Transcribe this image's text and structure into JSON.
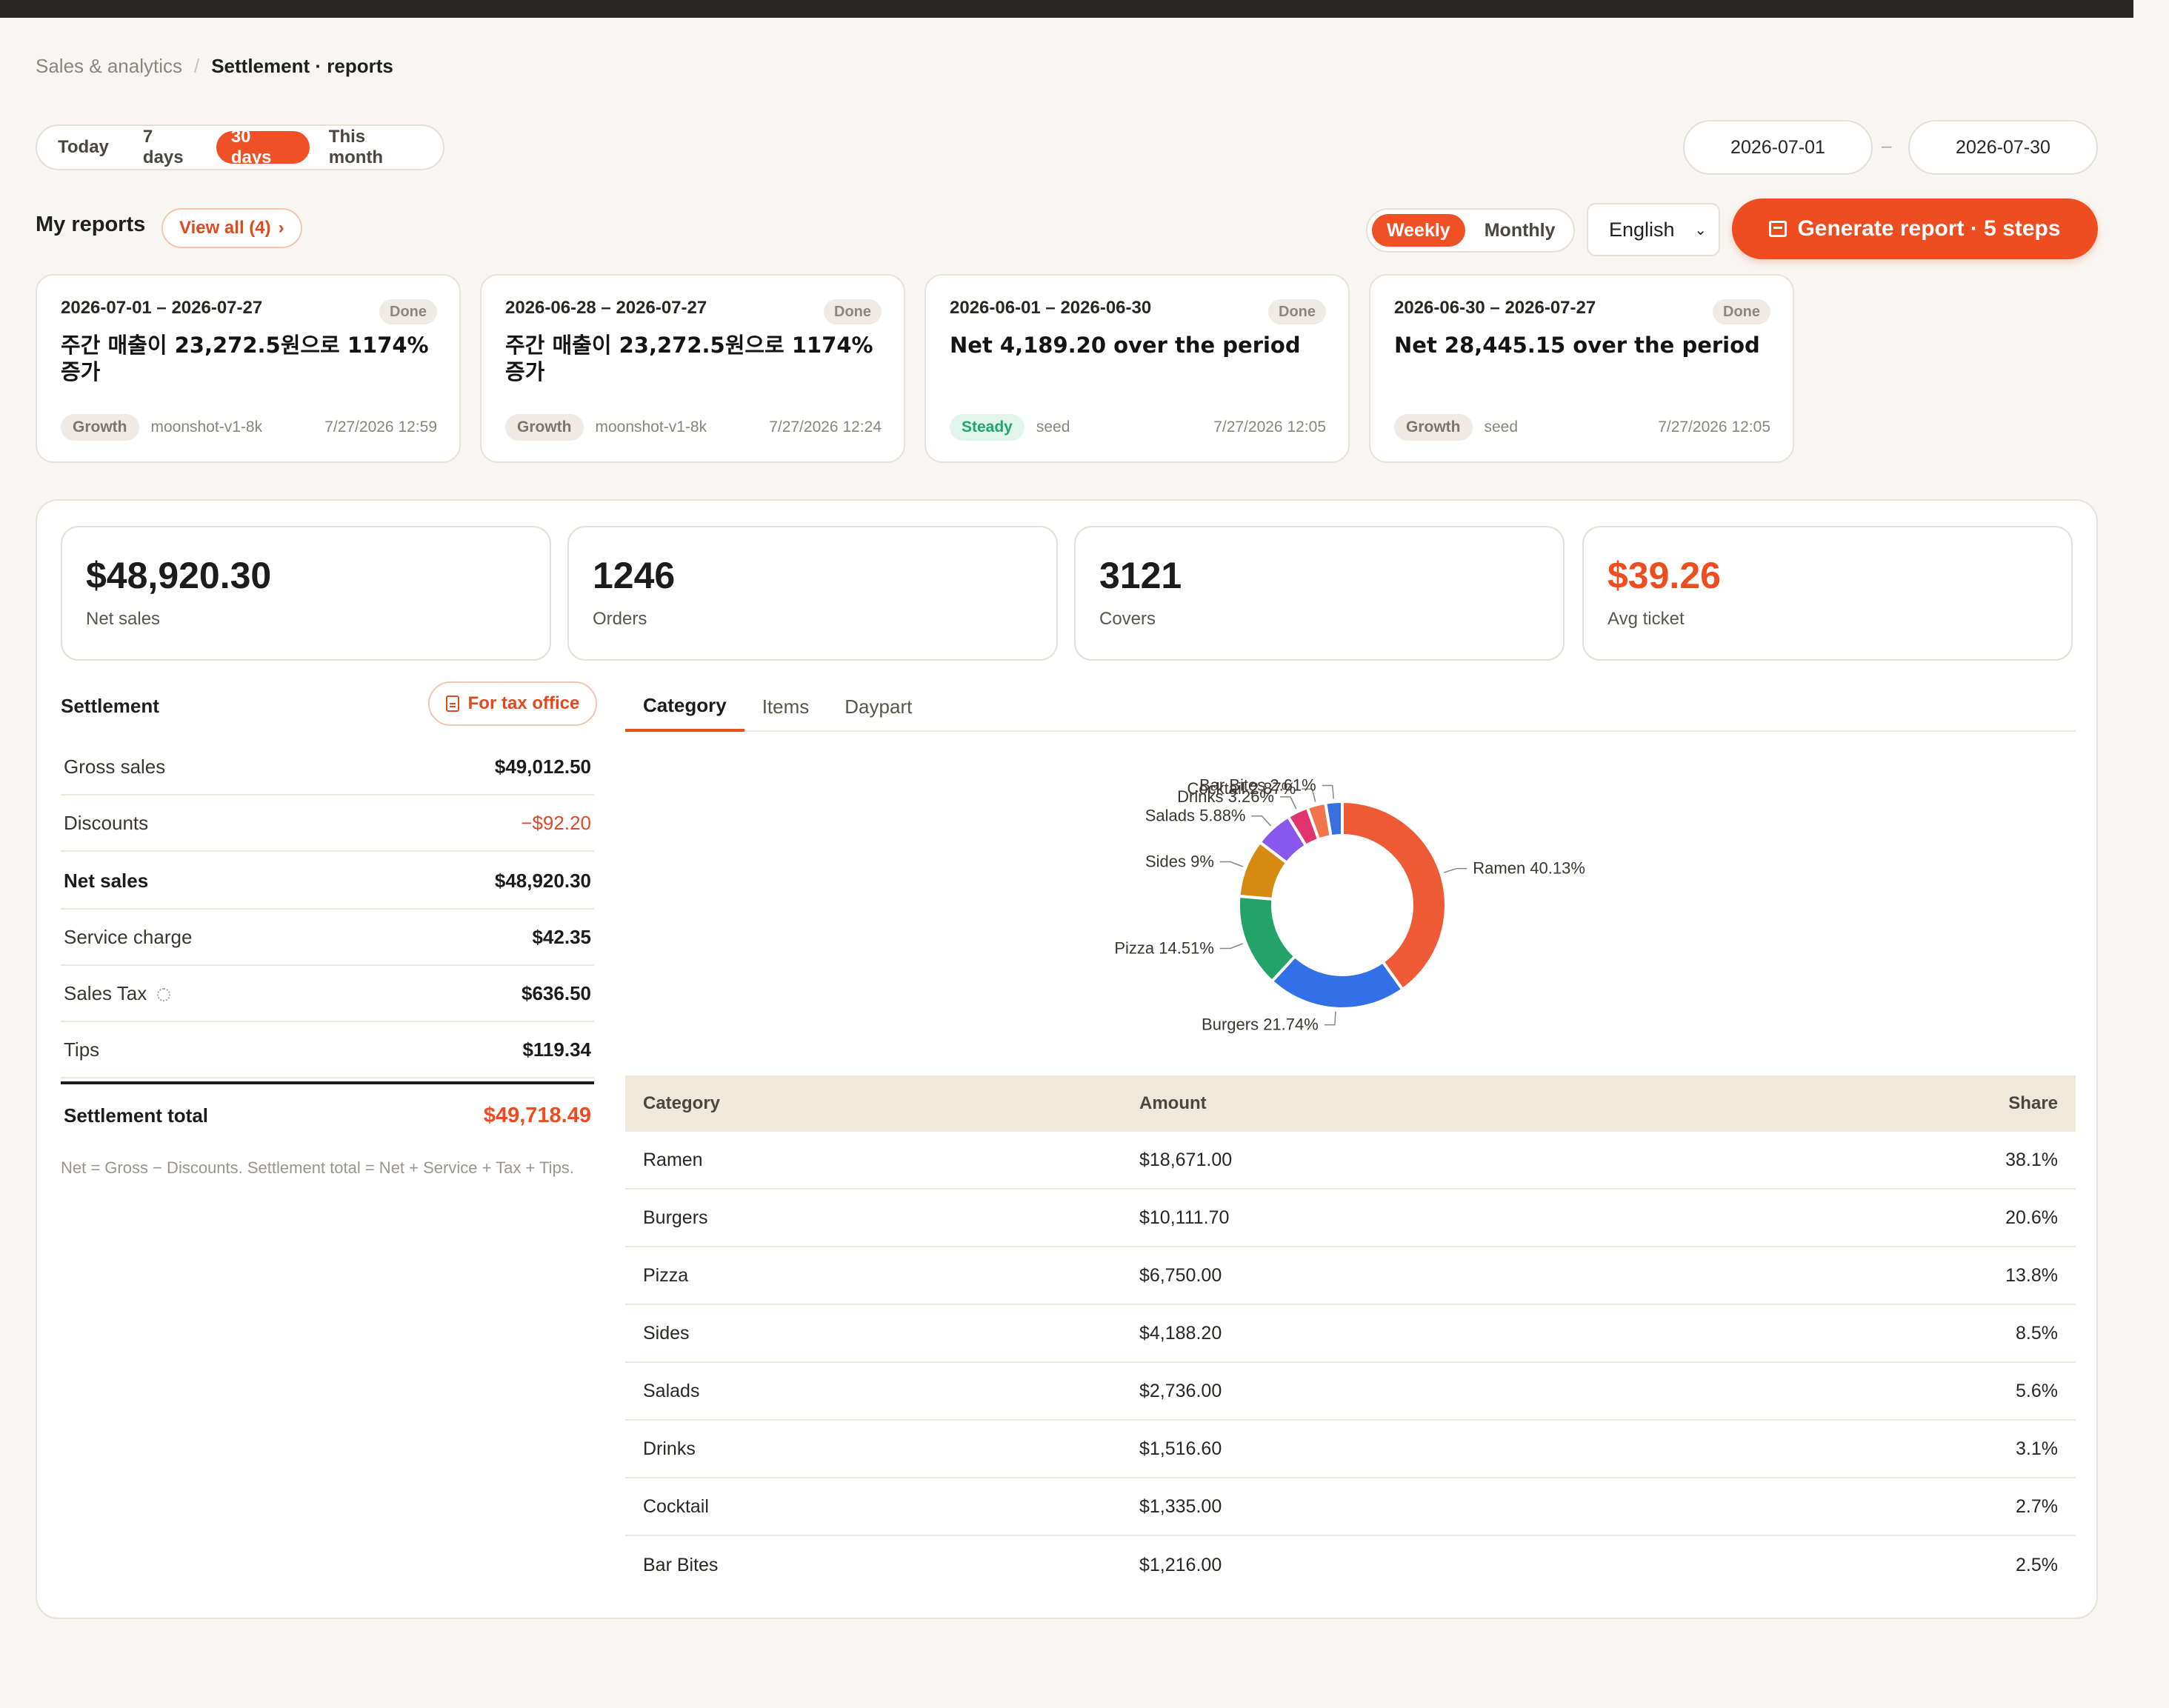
{
  "breadcrumb": {
    "parent": "Sales & analytics",
    "separator": "/",
    "current": "Settlement · reports"
  },
  "range_options": [
    "Today",
    "7 days",
    "30 days",
    "This month"
  ],
  "range_selected": "30 days",
  "date_from": "2026-07-01",
  "date_to": "2026-07-30",
  "date_separator": "–",
  "my_reports": {
    "title": "My reports",
    "view_all": "View all (4)"
  },
  "period_toggle": {
    "options": [
      "Weekly",
      "Monthly"
    ],
    "selected": "Weekly"
  },
  "language": {
    "selected": "English"
  },
  "generate_button": "Generate report · 5 steps",
  "report_cards": [
    {
      "range": "2026-07-01 – 2026-07-27",
      "status": "Done",
      "title": "주간 매출이 23,272.5원으로 1174% 증가",
      "tag": "Growth",
      "model": "moonshot-v1-8k",
      "time": "7/27/2026 12:59"
    },
    {
      "range": "2026-06-28 – 2026-07-27",
      "status": "Done",
      "title": "주간 매출이 23,272.5원으로 1174% 증가",
      "tag": "Growth",
      "model": "moonshot-v1-8k",
      "time": "7/27/2026 12:24"
    },
    {
      "range": "2026-06-01 – 2026-06-30",
      "status": "Done",
      "title": "Net 4,189.20 over the period",
      "tag": "Steady",
      "model": "seed",
      "time": "7/27/2026 12:05"
    },
    {
      "range": "2026-06-30 – 2026-07-27",
      "status": "Done",
      "title": "Net 28,445.15 over the period",
      "tag": "Growth",
      "model": "seed",
      "time": "7/27/2026 12:05"
    }
  ],
  "kpis": [
    {
      "value": "$48,920.30",
      "label": "Net sales"
    },
    {
      "value": "1246",
      "label": "Orders"
    },
    {
      "value": "3121",
      "label": "Covers"
    },
    {
      "value": "$39.26",
      "label": "Avg ticket"
    }
  ],
  "settlement": {
    "title": "Settlement",
    "tax_button": "For tax office",
    "rows": [
      {
        "label": "Gross sales",
        "value": "$49,012.50"
      },
      {
        "label": "Discounts",
        "value": "−$92.20"
      },
      {
        "label": "Net sales",
        "value": "$48,920.30"
      },
      {
        "label": "Service charge",
        "value": "$42.35"
      },
      {
        "label": "Sales Tax",
        "value": "$636.50"
      },
      {
        "label": "Tips",
        "value": "$119.34"
      }
    ],
    "total_label": "Settlement total",
    "total_value": "$49,718.49",
    "note": "Net = Gross − Discounts. Settlement total = Net + Service + Tax + Tips."
  },
  "tabs": [
    "Category",
    "Items",
    "Daypart"
  ],
  "tab_selected": "Category",
  "chart_data": {
    "type": "pie",
    "donut": true,
    "labels": [
      "Ramen",
      "Burgers",
      "Pizza",
      "Sides",
      "Salads",
      "Drinks",
      "Cocktail",
      "Bar Bites"
    ],
    "values": [
      40.13,
      21.74,
      14.51,
      9,
      5.88,
      3.26,
      2.87,
      2.61
    ],
    "value_labels": [
      "40.13%",
      "21.74%",
      "14.51%",
      "9%",
      "5.88%",
      "3.26%",
      "2.87%",
      "2.61%"
    ],
    "colors": [
      "#ee5a35",
      "#3370e8",
      "#21a36a",
      "#d58a12",
      "#8a58ec",
      "#e0346e",
      "#f2744a",
      "#3a6fe0"
    ]
  },
  "table": {
    "headers": [
      "Category",
      "Amount",
      "Share"
    ],
    "rows": [
      [
        "Ramen",
        "$18,671.00",
        "38.1%"
      ],
      [
        "Burgers",
        "$10,111.70",
        "20.6%"
      ],
      [
        "Pizza",
        "$6,750.00",
        "13.8%"
      ],
      [
        "Sides",
        "$4,188.20",
        "8.5%"
      ],
      [
        "Salads",
        "$2,736.00",
        "5.6%"
      ],
      [
        "Drinks",
        "$1,516.60",
        "3.1%"
      ],
      [
        "Cocktail",
        "$1,335.00",
        "2.7%"
      ],
      [
        "Bar Bites",
        "$1,216.00",
        "2.5%"
      ]
    ]
  }
}
